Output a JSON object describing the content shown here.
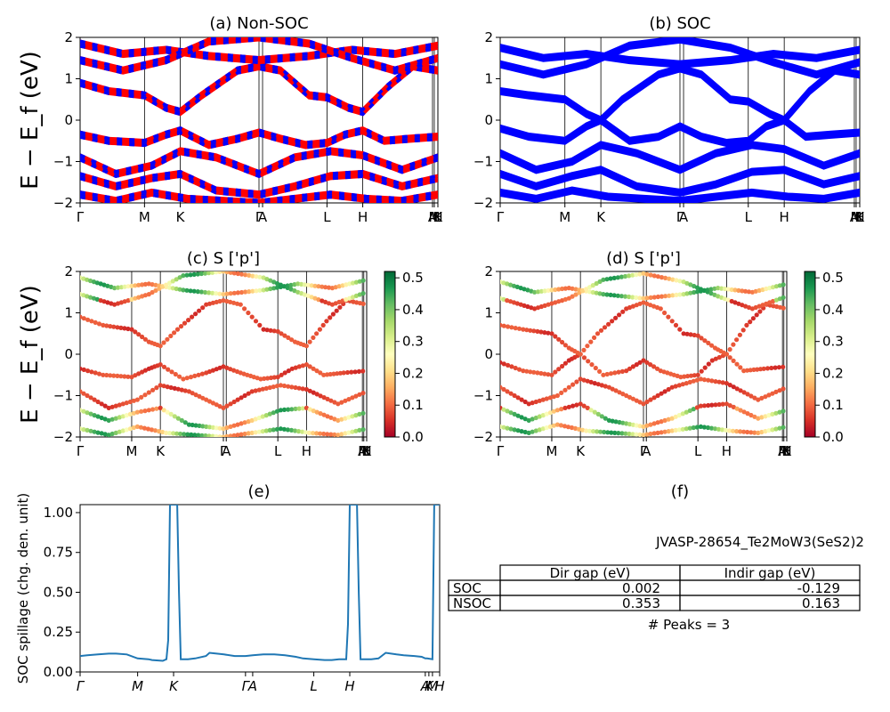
{
  "colors": {
    "nonsoc_up": "#ff0000",
    "nonsoc_dn": "#0000ff",
    "soc": "#0000ff",
    "spillage": "#1f77b4",
    "colormap": "RdYlGn"
  },
  "chart_data": [
    {
      "id": "a",
      "type": "line",
      "title": "(a) Non-SOC",
      "ylabel": "E − E_f (eV)",
      "ylim": [
        -2,
        2
      ],
      "yticks": [
        "2",
        "1",
        "0",
        "−1",
        "−2"
      ],
      "xticks": [
        "Γ",
        "M",
        "K",
        "Γ",
        "A",
        "L",
        "H",
        "A",
        "M",
        "L",
        "H",
        "K"
      ],
      "xtick_positions": [
        0,
        0.18,
        0.28,
        0.5,
        0.51,
        0.69,
        0.79,
        0.985,
        0.99,
        1.0,
        1.0,
        1.0
      ],
      "series": [
        {
          "values": [
            {
              "x": [
                0,
                0.08,
                0.18,
                0.24,
                0.28,
                0.36,
                0.44,
                0.5,
                0.56,
                0.63,
                0.69,
                0.74,
                0.79,
                0.85,
                0.92,
                1.0
              ],
              "y": [
                -0.35,
                -0.5,
                -0.55,
                -0.35,
                -0.25,
                -0.6,
                -0.45,
                -0.3,
                -0.45,
                -0.6,
                -0.55,
                -0.35,
                -0.25,
                -0.5,
                -0.45,
                -0.4
              ]
            },
            {
              "x": [
                0,
                0.08,
                0.18,
                0.24,
                0.28,
                0.34,
                0.44,
                0.5,
                0.56,
                0.64,
                0.69,
                0.75,
                0.79,
                0.86,
                0.93,
                1.0
              ],
              "y": [
                0.9,
                0.7,
                0.6,
                0.3,
                0.2,
                0.6,
                1.2,
                1.3,
                1.2,
                0.6,
                0.55,
                0.3,
                0.2,
                0.8,
                1.3,
                1.2
              ]
            },
            {
              "x": [
                0,
                0.1,
                0.2,
                0.28,
                0.38,
                0.5,
                0.6,
                0.7,
                0.79,
                0.9,
                1.0
              ],
              "y": [
                -0.9,
                -1.3,
                -1.1,
                -0.75,
                -0.9,
                -1.3,
                -0.9,
                -0.75,
                -0.85,
                -1.2,
                -0.9
              ]
            },
            {
              "x": [
                0,
                0.1,
                0.2,
                0.28,
                0.38,
                0.5,
                0.6,
                0.7,
                0.79,
                0.9,
                1.0
              ],
              "y": [
                -1.35,
                -1.6,
                -1.4,
                -1.3,
                -1.7,
                -1.8,
                -1.6,
                -1.35,
                -1.3,
                -1.6,
                -1.4
              ]
            },
            {
              "x": [
                0,
                0.12,
                0.24,
                0.36,
                0.5,
                0.64,
                0.76,
                0.88,
                1.0
              ],
              "y": [
                1.85,
                1.6,
                1.7,
                1.55,
                1.45,
                1.55,
                1.7,
                1.6,
                1.8
              ]
            },
            {
              "x": [
                0,
                0.12,
                0.24,
                0.36,
                0.5,
                0.64,
                0.76,
                0.88,
                1.0
              ],
              "y": [
                1.45,
                1.2,
                1.45,
                1.9,
                2.0,
                1.85,
                1.5,
                1.2,
                1.5
              ]
            },
            {
              "x": [
                0,
                0.1,
                0.2,
                0.3,
                0.4,
                0.5,
                0.6,
                0.7,
                0.8,
                0.9,
                1.0
              ],
              "y": [
                -1.8,
                -1.95,
                -1.75,
                -1.9,
                -1.95,
                -2.0,
                -1.9,
                -1.8,
                -1.9,
                -1.95,
                -1.8
              ]
            }
          ]
        }
      ]
    },
    {
      "id": "b",
      "type": "line",
      "title": "(b) SOC",
      "ylim": [
        -2,
        2
      ],
      "yticks": [
        "2",
        "1",
        "0",
        "−1",
        "−2"
      ],
      "xticks": [
        "Γ",
        "M",
        "K",
        "Γ",
        "A",
        "L",
        "H",
        "A",
        "M",
        "L",
        "H",
        "K"
      ],
      "xtick_positions": [
        0,
        0.18,
        0.28,
        0.5,
        0.51,
        0.69,
        0.79,
        0.985,
        0.99,
        1.0,
        1.0,
        1.0
      ],
      "series": [
        {
          "values": [
            {
              "x": [
                0,
                0.08,
                0.18,
                0.24,
                0.28,
                0.36,
                0.44,
                0.5,
                0.56,
                0.63,
                0.69,
                0.74,
                0.79,
                0.85,
                0.92,
                1.0
              ],
              "y": [
                -0.2,
                -0.4,
                -0.5,
                -0.15,
                0.0,
                -0.5,
                -0.4,
                -0.15,
                -0.4,
                -0.55,
                -0.5,
                -0.15,
                0.0,
                -0.4,
                -0.35,
                -0.3
              ]
            },
            {
              "x": [
                0,
                0.08,
                0.18,
                0.24,
                0.28,
                0.34,
                0.44,
                0.5,
                0.56,
                0.64,
                0.69,
                0.75,
                0.79,
                0.86,
                0.93,
                1.0
              ],
              "y": [
                0.7,
                0.6,
                0.5,
                0.15,
                0.0,
                0.5,
                1.1,
                1.25,
                1.1,
                0.5,
                0.45,
                0.15,
                0.0,
                0.7,
                1.2,
                1.1
              ]
            },
            {
              "x": [
                0,
                0.1,
                0.2,
                0.28,
                0.38,
                0.5,
                0.6,
                0.7,
                0.79,
                0.9,
                1.0
              ],
              "y": [
                -0.8,
                -1.2,
                -1.0,
                -0.6,
                -0.8,
                -1.2,
                -0.8,
                -0.6,
                -0.7,
                -1.1,
                -0.8
              ]
            },
            {
              "x": [
                0,
                0.1,
                0.2,
                0.28,
                0.38,
                0.5,
                0.6,
                0.7,
                0.79,
                0.9,
                1.0
              ],
              "y": [
                -1.3,
                -1.6,
                -1.35,
                -1.2,
                -1.6,
                -1.75,
                -1.55,
                -1.25,
                -1.2,
                -1.55,
                -1.35
              ]
            },
            {
              "x": [
                0,
                0.12,
                0.24,
                0.36,
                0.5,
                0.64,
                0.76,
                0.88,
                1.0
              ],
              "y": [
                1.75,
                1.5,
                1.6,
                1.45,
                1.35,
                1.45,
                1.6,
                1.5,
                1.7
              ]
            },
            {
              "x": [
                0,
                0.12,
                0.24,
                0.36,
                0.5,
                0.64,
                0.76,
                0.88,
                1.0
              ],
              "y": [
                1.35,
                1.1,
                1.35,
                1.8,
                1.95,
                1.75,
                1.4,
                1.1,
                1.4
              ]
            },
            {
              "x": [
                0,
                0.1,
                0.2,
                0.3,
                0.4,
                0.5,
                0.6,
                0.7,
                0.8,
                0.9,
                1.0
              ],
              "y": [
                -1.75,
                -1.9,
                -1.7,
                -1.85,
                -1.9,
                -1.95,
                -1.85,
                -1.75,
                -1.85,
                -1.9,
                -1.75
              ]
            }
          ]
        }
      ]
    },
    {
      "id": "c",
      "type": "scatter",
      "title": "(c)  S ['p']",
      "ylabel": "E − E_f (eV)",
      "ylim": [
        -2,
        2
      ],
      "yticks": [
        "2",
        "1",
        "0",
        "−1",
        "−2"
      ],
      "xticks": [
        "Γ",
        "M",
        "K",
        "Γ",
        "A",
        "L",
        "H",
        "A",
        "M",
        "L",
        "H",
        "K"
      ],
      "xtick_positions": [
        0,
        0.18,
        0.28,
        0.5,
        0.51,
        0.69,
        0.79,
        0.985,
        0.99,
        1.0,
        1.0,
        1.0
      ],
      "colorbar": {
        "range": [
          0.0,
          0.5
        ],
        "ticks": [
          "0.5",
          "0.4",
          "0.3",
          "0.2",
          "0.1",
          "0.0"
        ],
        "colormap": "RdYlGn"
      }
    },
    {
      "id": "d",
      "type": "scatter",
      "title": "(d) S ['p']",
      "ylim": [
        -2,
        2
      ],
      "yticks": [
        "2",
        "1",
        "0",
        "−1",
        "−2"
      ],
      "xticks": [
        "Γ",
        "M",
        "K",
        "Γ",
        "A",
        "L",
        "H",
        "A",
        "M",
        "L",
        "H",
        "K"
      ],
      "xtick_positions": [
        0,
        0.18,
        0.28,
        0.5,
        0.51,
        0.69,
        0.79,
        0.985,
        0.99,
        1.0,
        1.0,
        1.0
      ],
      "colorbar": {
        "range": [
          0.0,
          0.5
        ],
        "ticks": [
          "0.5",
          "0.4",
          "0.3",
          "0.2",
          "0.1",
          "0.0"
        ],
        "colormap": "RdYlGn"
      }
    },
    {
      "id": "e",
      "type": "line",
      "title": "(e)",
      "ylabel": "SOC spillage (chg. den. unit)",
      "ylim": [
        0,
        1.05
      ],
      "yticks": [
        "1.00",
        "0.75",
        "0.50",
        "0.25",
        "0.00"
      ],
      "ytick_values": [
        1.0,
        0.75,
        0.5,
        0.25,
        0.0
      ],
      "xticks": [
        "Γ",
        "M",
        "K",
        "Γ",
        "A",
        "L",
        "H",
        "A",
        "K",
        "M",
        "H"
      ],
      "xtick_positions": [
        0,
        0.16,
        0.26,
        0.46,
        0.48,
        0.65,
        0.75,
        0.96,
        0.97,
        0.98,
        1.0
      ],
      "series": [
        {
          "x": [
            0,
            0.02,
            0.05,
            0.08,
            0.1,
            0.13,
            0.16,
            0.19,
            0.2,
            0.23,
            0.24,
            0.245,
            0.25,
            0.27,
            0.275,
            0.28,
            0.3,
            0.32,
            0.35,
            0.36,
            0.38,
            0.4,
            0.43,
            0.46,
            0.48,
            0.51,
            0.54,
            0.57,
            0.6,
            0.62,
            0.65,
            0.68,
            0.7,
            0.72,
            0.74,
            0.745,
            0.75,
            0.77,
            0.775,
            0.78,
            0.81,
            0.83,
            0.85,
            0.88,
            0.9,
            0.93,
            0.95,
            0.96,
            0.965,
            0.98,
            0.985,
            1.0
          ],
          "y": [
            0.1,
            0.105,
            0.11,
            0.115,
            0.115,
            0.11,
            0.085,
            0.08,
            0.075,
            0.07,
            0.08,
            0.2,
            1.05,
            1.05,
            0.5,
            0.08,
            0.08,
            0.085,
            0.1,
            0.12,
            0.115,
            0.11,
            0.1,
            0.1,
            0.105,
            0.11,
            0.11,
            0.105,
            0.095,
            0.085,
            0.08,
            0.075,
            0.075,
            0.08,
            0.08,
            0.3,
            1.05,
            1.05,
            0.5,
            0.08,
            0.08,
            0.085,
            0.12,
            0.11,
            0.105,
            0.1,
            0.095,
            0.085,
            0.085,
            0.08,
            1.05,
            1.05
          ]
        }
      ]
    }
  ],
  "panel_f": {
    "title": "(f)",
    "material": "JVASP-28654_Te2MoW3(SeS2)2",
    "table": {
      "headers": [
        "",
        "Dir gap (eV)",
        "Indir gap (eV)"
      ],
      "rows": [
        [
          "SOC",
          "0.002",
          "-0.129"
        ],
        [
          "NSOC",
          "0.353",
          "0.163"
        ]
      ]
    },
    "peaks_label": "# Peaks = 3"
  }
}
